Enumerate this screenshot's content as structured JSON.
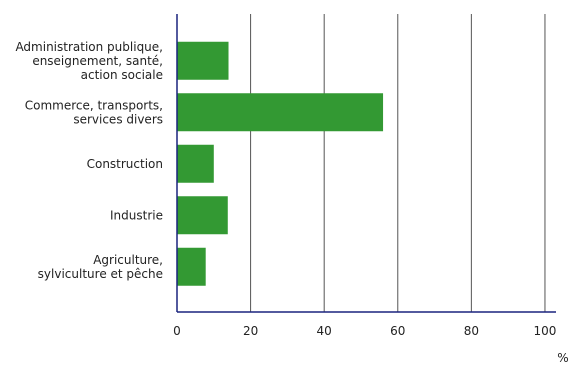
{
  "colors": {
    "bar": "#339933",
    "axis": "#1a237e",
    "grid": "#555555",
    "text": "#222222"
  },
  "chart_data": {
    "type": "bar",
    "orientation": "horizontal",
    "categories": [
      "Administration publique,|enseignement, santé,|action sociale",
      "Commerce, transports,|services divers",
      "Construction",
      "Industrie",
      "Agriculture,|sylviculture et pêche"
    ],
    "values": [
      14,
      56,
      10,
      13.8,
      7.8
    ],
    "xlim": [
      0,
      103
    ],
    "xticks": [
      0,
      20,
      40,
      60,
      80,
      100
    ],
    "xlabel": "%",
    "grid": "vertical",
    "legend": "none"
  }
}
